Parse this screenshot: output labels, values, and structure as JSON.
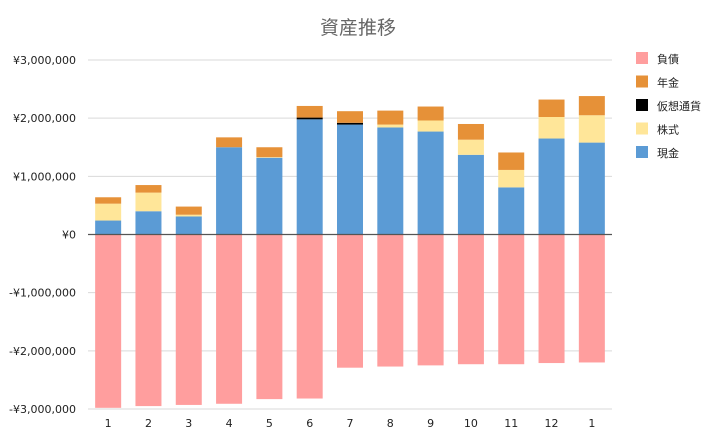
{
  "chart_data": {
    "type": "bar",
    "stacked": true,
    "title": "資産推移",
    "xlabel": "",
    "ylabel": "",
    "ylim": [
      -3000000,
      3000000
    ],
    "yticks": [
      3000000,
      2000000,
      1000000,
      0,
      -1000000,
      -2000000,
      -3000000
    ],
    "ytick_labels": [
      "¥3,000,000",
      "¥2,000,000",
      "¥1,000,000",
      "¥0",
      "-¥1,000,000",
      "-¥2,000,000",
      "-¥3,000,000"
    ],
    "grid": true,
    "legend_position": "right",
    "categories": [
      "1",
      "2",
      "3",
      "4",
      "5",
      "6",
      "7",
      "8",
      "9",
      "10",
      "11",
      "12",
      "1"
    ],
    "series": [
      {
        "name": "負債",
        "color": "#ff9e9e",
        "values": [
          -2980000,
          -2950000,
          -2930000,
          -2910000,
          -2830000,
          -2820000,
          -2290000,
          -2270000,
          -2250000,
          -2230000,
          -2230000,
          -2210000,
          -2200000
        ]
      },
      {
        "name": "現金",
        "color": "#5b9bd5",
        "values": [
          240000,
          400000,
          310000,
          1500000,
          1320000,
          1980000,
          1890000,
          1840000,
          1770000,
          1370000,
          810000,
          1650000,
          1580000
        ]
      },
      {
        "name": "株式",
        "color": "#ffe699",
        "values": [
          290000,
          320000,
          30000,
          0,
          10000,
          0,
          0,
          50000,
          190000,
          260000,
          300000,
          370000,
          470000
        ]
      },
      {
        "name": "仮想通貨",
        "color": "#000000",
        "values": [
          0,
          0,
          0,
          0,
          0,
          30000,
          30000,
          0,
          0,
          0,
          0,
          0,
          0
        ]
      },
      {
        "name": "年金",
        "color": "#e69138",
        "values": [
          110000,
          130000,
          140000,
          170000,
          170000,
          200000,
          200000,
          240000,
          240000,
          270000,
          300000,
          300000,
          330000
        ]
      }
    ],
    "legend_order": [
      "負債",
      "年金",
      "仮想通貨",
      "株式",
      "現金"
    ]
  }
}
